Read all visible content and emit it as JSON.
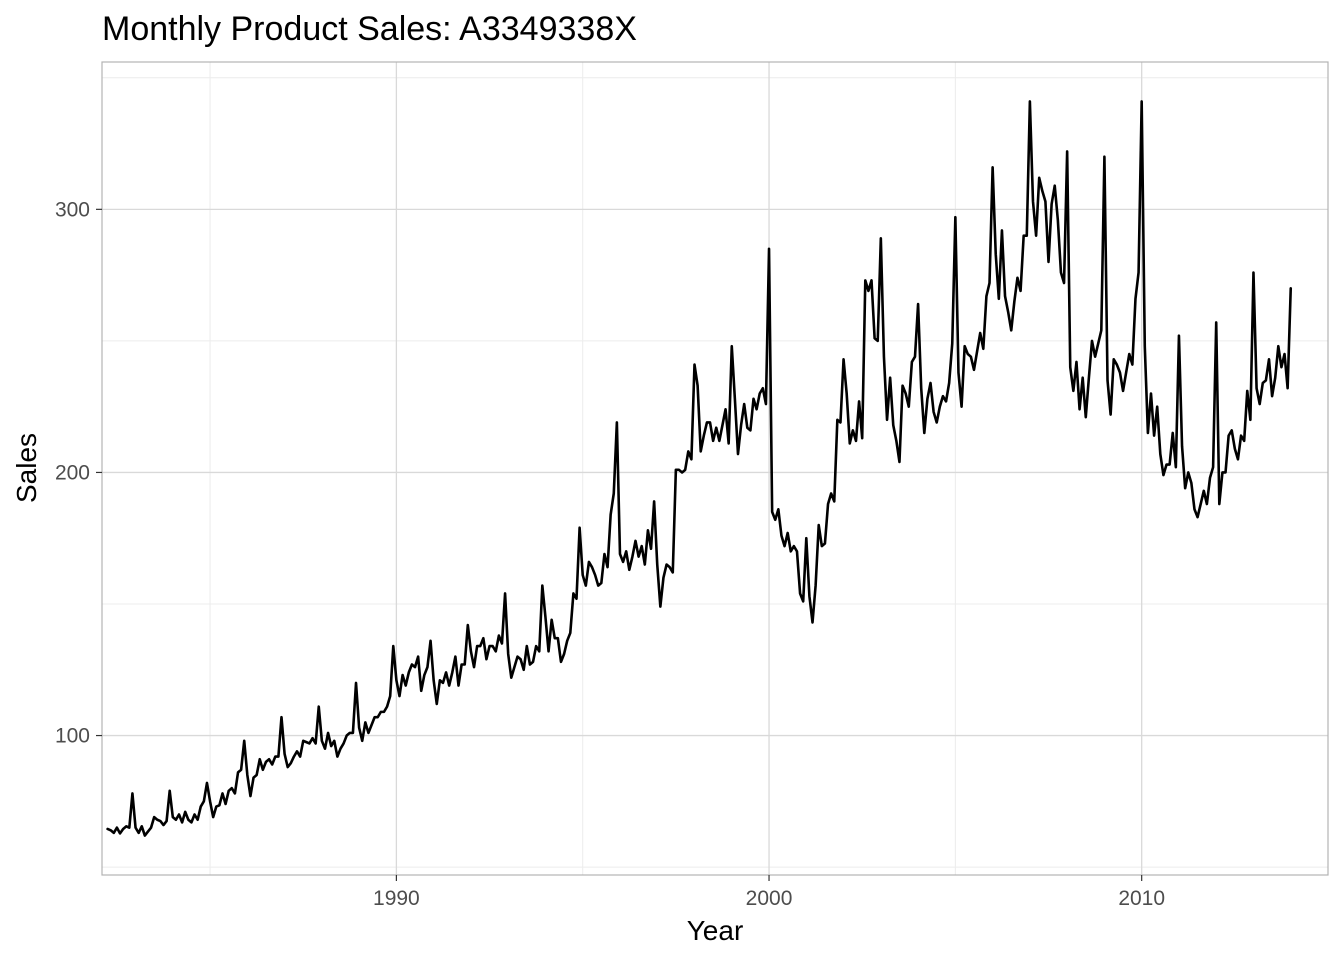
{
  "colors": {
    "line": "#000000",
    "grid_major": "#d9d9d9",
    "grid_minor": "#ececec",
    "panel_border": "#b3b3b3",
    "background": "#ffffff"
  },
  "chart_data": {
    "type": "line",
    "title": "Monthly Product Sales: A3349338X",
    "xlabel": "Year",
    "ylabel": "Sales",
    "xlim": [
      1982.1,
      2015.0
    ],
    "ylim": [
      47,
      356
    ],
    "x_ticks": [
      1990,
      2000,
      2010
    ],
    "x_tick_labels": [
      "1990",
      "2000",
      "2010"
    ],
    "x_minor_ticks": [
      1985,
      1995,
      2005,
      2015
    ],
    "y_ticks": [
      100,
      200,
      300
    ],
    "y_tick_labels": [
      "100",
      "200",
      "300"
    ],
    "y_minor_ticks": [
      50,
      150,
      250,
      350
    ],
    "grid": true,
    "legend": "none",
    "series": [
      {
        "x_start": "1982-04",
        "frequency": "monthly",
        "values": [
          64.5,
          64.0,
          63.0,
          65.0,
          62.8,
          64.5,
          65.5,
          65.0,
          78.0,
          65.0,
          63.0,
          65.5,
          62.0,
          63.5,
          65.0,
          69.0,
          68.0,
          67.5,
          66.0,
          67.5,
          79.0,
          69.0,
          68.0,
          70.0,
          67.0,
          71.0,
          68.0,
          67.0,
          70.0,
          68.0,
          73.0,
          75.0,
          82.0,
          75.0,
          69.0,
          73.0,
          73.5,
          78.0,
          74.0,
          79.0,
          80.0,
          78.0,
          86.0,
          87.0,
          98.0,
          85.0,
          77.0,
          84.0,
          85.0,
          91.0,
          87.0,
          90.0,
          91.0,
          89.0,
          92.0,
          92.0,
          107.0,
          93.0,
          88.0,
          89.5,
          92.0,
          94.0,
          92.0,
          98.0,
          97.5,
          97.0,
          99.0,
          97.0,
          111.0,
          98.0,
          95.0,
          101.0,
          96.0,
          98.0,
          92.0,
          95.0,
          97.0,
          100.0,
          101.0,
          101.0,
          120.0,
          103.0,
          98.0,
          105.0,
          101.0,
          104.0,
          107.0,
          107.0,
          109.0,
          109.0,
          111.0,
          115.0,
          134.0,
          121.0,
          115.0,
          123.0,
          119.0,
          124.0,
          127.0,
          126.0,
          130.0,
          117.0,
          123.0,
          126.0,
          136.0,
          121.0,
          112.0,
          121.0,
          120.0,
          124.0,
          119.0,
          124.0,
          130.0,
          119.0,
          127.0,
          127.0,
          142.0,
          132.0,
          126.0,
          134.0,
          134.0,
          137.0,
          129.0,
          134.0,
          134.0,
          132.0,
          138.0,
          135.0,
          154.0,
          131.0,
          122.0,
          126.0,
          130.0,
          129.0,
          125.0,
          134.0,
          127.0,
          128.0,
          134.0,
          132.0,
          157.0,
          145.0,
          132.0,
          144.0,
          137.0,
          137.0,
          128.0,
          131.0,
          136.0,
          139.0,
          154.0,
          152.0,
          179.0,
          161.0,
          157.0,
          166.0,
          164.0,
          161.0,
          157.0,
          158.0,
          169.0,
          164.0,
          184.0,
          192.0,
          219.0,
          169.0,
          166.0,
          170.0,
          163.0,
          168.0,
          174.0,
          168.0,
          172.0,
          165.0,
          178.0,
          171.0,
          189.0,
          165.0,
          149.0,
          160.0,
          165.0,
          164.0,
          162.0,
          201.0,
          201.0,
          200.0,
          201.0,
          208.0,
          205.0,
          241.0,
          233.0,
          208.0,
          214.0,
          219.0,
          219.0,
          212.0,
          217.0,
          212.0,
          218.0,
          224.0,
          211.0,
          248.0,
          228.0,
          207.0,
          218.0,
          226.0,
          217.0,
          216.0,
          228.0,
          224.0,
          230.0,
          232.0,
          226.0,
          285.0,
          185.0,
          182.0,
          186.0,
          176.0,
          172.0,
          177.0,
          170.0,
          172.0,
          170.0,
          154.0,
          151.0,
          175.0,
          153.0,
          143.0,
          157.0,
          180.0,
          172.0,
          173.0,
          188.0,
          192.0,
          189.0,
          220.0,
          219.0,
          243.0,
          230.0,
          211.0,
          216.0,
          212.0,
          227.0,
          213.0,
          273.0,
          269.0,
          273.0,
          251.0,
          250.0,
          289.0,
          244.0,
          220.0,
          236.0,
          218.0,
          212.0,
          204.0,
          233.0,
          230.0,
          225.0,
          242.0,
          244.0,
          264.0,
          232.0,
          215.0,
          228.0,
          234.0,
          223.0,
          219.0,
          225.0,
          229.0,
          227.0,
          234.0,
          249.0,
          297.0,
          238.0,
          225.0,
          248.0,
          245.0,
          244.0,
          239.0,
          246.0,
          253.0,
          247.0,
          267.0,
          272.0,
          316.0,
          283.0,
          266.0,
          292.0,
          267.0,
          261.0,
          254.0,
          265.0,
          274.0,
          269.0,
          290.0,
          290.0,
          341.0,
          303.0,
          290.0,
          312.0,
          307.0,
          303.0,
          280.0,
          302.0,
          309.0,
          296.0,
          276.0,
          272.0,
          322.0,
          240.0,
          231.0,
          242.0,
          224.0,
          236.0,
          221.0,
          236.0,
          250.0,
          244.0,
          249.0,
          254.0,
          320.0,
          235.0,
          222.0,
          243.0,
          241.0,
          238.0,
          231.0,
          238.0,
          245.0,
          241.0,
          266.0,
          276.0,
          341.0,
          248.0,
          215.0,
          230.0,
          214.0,
          225.0,
          207.0,
          199.0,
          203.0,
          203.0,
          215.0,
          202.0,
          252.0,
          210.0,
          194.0,
          200.0,
          196.0,
          186.0,
          183.0,
          188.0,
          193.0,
          188.0,
          198.0,
          202.0,
          257.0,
          188.0,
          200.0,
          200.0,
          214.0,
          216.0,
          209.0,
          205.0,
          214.0,
          212.0,
          231.0,
          220.0,
          276.0,
          232.0,
          226.0,
          234.0,
          235.0,
          243.0,
          229.0,
          236.0,
          248.0,
          240.0,
          245.0,
          232.0,
          270.0
        ]
      }
    ]
  }
}
